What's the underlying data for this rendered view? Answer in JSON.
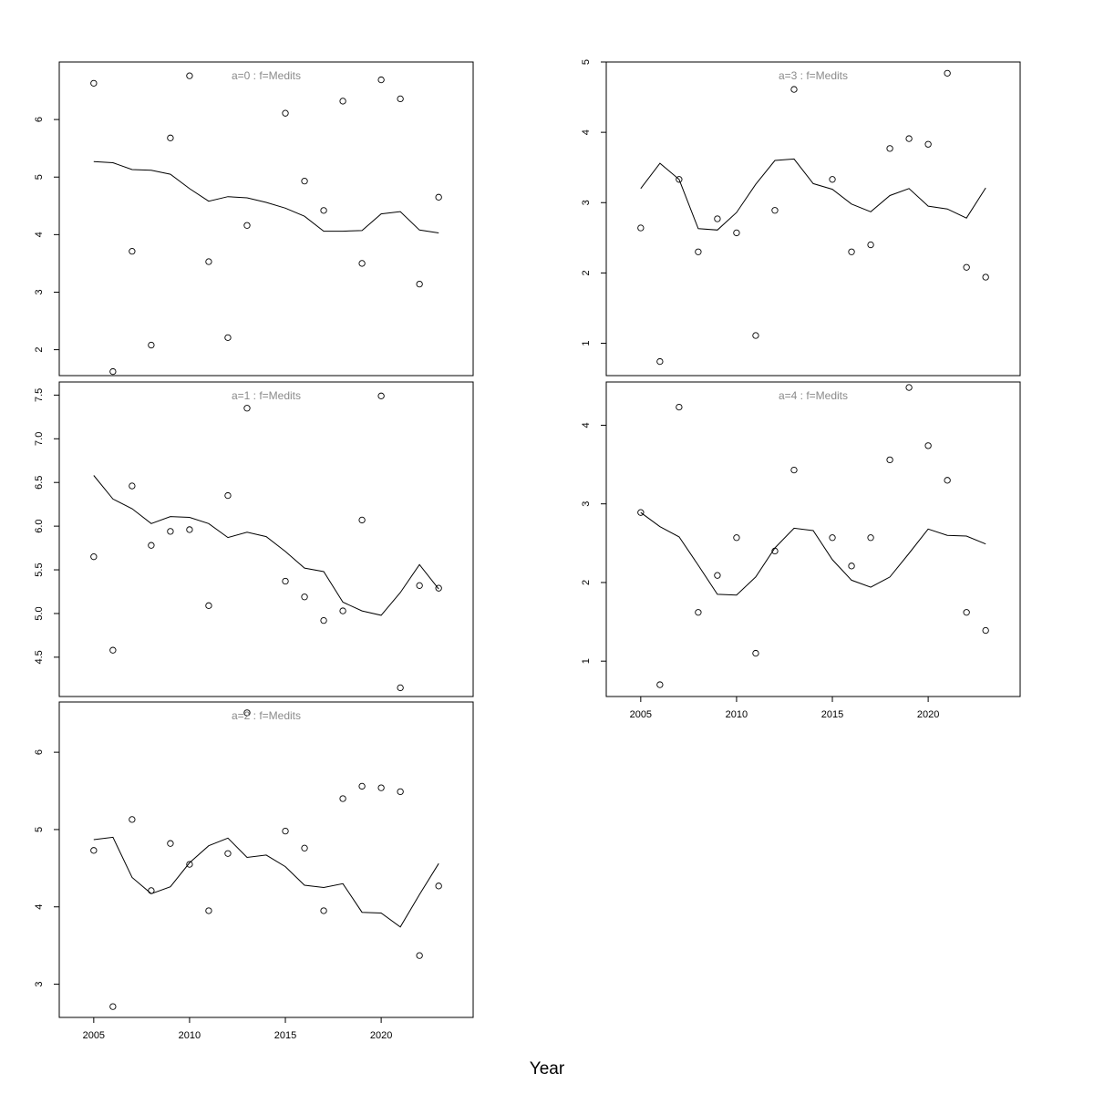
{
  "figure": {
    "xlabel": "Year"
  },
  "chart_data": [
    {
      "type": "line",
      "title": "a=0  :  f=Medits",
      "xlim": [
        2003.2,
        2024.8
      ],
      "ylim": [
        1.55,
        7.0
      ],
      "xticks": [],
      "yticks": [
        2,
        3,
        4,
        5,
        6
      ],
      "series": [
        {
          "kind": "line",
          "x": [
            2005,
            2006,
            2007,
            2008,
            2009,
            2010,
            2011,
            2012,
            2013,
            2014,
            2015,
            2016,
            2017,
            2018,
            2019,
            2020,
            2021,
            2022,
            2023
          ],
          "y": [
            5.27,
            5.25,
            5.13,
            5.12,
            5.05,
            4.8,
            4.58,
            4.66,
            4.64,
            4.56,
            4.46,
            4.32,
            4.06,
            4.06,
            4.07,
            4.36,
            4.4,
            4.08,
            4.03
          ]
        },
        {
          "kind": "points",
          "x": [
            2005,
            2006,
            2007,
            2008,
            2009,
            2010,
            2011,
            2012,
            2013,
            2015,
            2016,
            2017,
            2018,
            2019,
            2020,
            2021,
            2022,
            2023
          ],
          "y": [
            6.63,
            1.62,
            3.71,
            2.08,
            5.68,
            6.76,
            3.53,
            2.21,
            4.16,
            6.11,
            4.93,
            4.42,
            6.32,
            3.5,
            6.69,
            6.36,
            3.14,
            4.65
          ]
        }
      ]
    },
    {
      "type": "line",
      "title": "a=1  :  f=Medits",
      "xlim": [
        2003.2,
        2024.8
      ],
      "ylim": [
        4.05,
        7.65
      ],
      "xticks": [],
      "yticks": [
        4.5,
        5.0,
        5.5,
        6.0,
        6.5,
        7.0,
        7.5
      ],
      "ytick_labels": [
        "4.5",
        "5.0",
        "5.5",
        "6.0",
        "6.5",
        "7.0",
        "7.5"
      ],
      "series": [
        {
          "kind": "line",
          "x": [
            2005,
            2006,
            2007,
            2008,
            2009,
            2010,
            2011,
            2012,
            2013,
            2014,
            2015,
            2016,
            2017,
            2018,
            2019,
            2020,
            2021,
            2022,
            2023
          ],
          "y": [
            6.58,
            6.31,
            6.2,
            6.03,
            6.11,
            6.1,
            6.03,
            5.87,
            5.93,
            5.88,
            5.71,
            5.52,
            5.48,
            5.13,
            5.03,
            4.98,
            5.24,
            5.56,
            5.28
          ]
        },
        {
          "kind": "points",
          "x": [
            2005,
            2006,
            2007,
            2008,
            2009,
            2010,
            2011,
            2012,
            2013,
            2015,
            2016,
            2017,
            2018,
            2019,
            2020,
            2021,
            2022,
            2023
          ],
          "y": [
            5.65,
            4.58,
            6.46,
            5.78,
            5.94,
            5.96,
            5.09,
            6.35,
            7.35,
            5.37,
            5.19,
            4.92,
            5.03,
            6.07,
            7.49,
            4.15,
            5.32,
            5.29
          ]
        }
      ]
    },
    {
      "type": "line",
      "title": "a=2  :  f=Medits",
      "xlim": [
        2003.2,
        2024.8
      ],
      "ylim": [
        2.57,
        6.65
      ],
      "xticks": [
        2005,
        2010,
        2015,
        2020
      ],
      "yticks": [
        3,
        4,
        5,
        6
      ],
      "series": [
        {
          "kind": "line",
          "x": [
            2005,
            2006,
            2007,
            2008,
            2009,
            2010,
            2011,
            2012,
            2013,
            2014,
            2015,
            2016,
            2017,
            2018,
            2019,
            2020,
            2021,
            2022,
            2023
          ],
          "y": [
            4.87,
            4.9,
            4.38,
            4.17,
            4.26,
            4.57,
            4.79,
            4.89,
            4.64,
            4.67,
            4.52,
            4.28,
            4.25,
            4.3,
            3.93,
            3.92,
            3.74,
            4.16,
            4.56
          ]
        },
        {
          "kind": "points",
          "x": [
            2005,
            2006,
            2007,
            2008,
            2009,
            2010,
            2011,
            2012,
            2013,
            2015,
            2016,
            2017,
            2018,
            2019,
            2020,
            2021,
            2022,
            2023
          ],
          "y": [
            4.73,
            2.71,
            5.13,
            4.21,
            4.82,
            4.55,
            3.95,
            4.69,
            6.51,
            4.98,
            4.76,
            3.95,
            5.4,
            5.56,
            5.54,
            5.49,
            3.37,
            4.27
          ]
        }
      ]
    },
    {
      "type": "line",
      "title": "a=3  :  f=Medits",
      "xlim": [
        2003.2,
        2024.8
      ],
      "ylim": [
        0.54,
        5.0
      ],
      "xticks": [],
      "yticks": [
        1,
        2,
        3,
        4,
        5
      ],
      "series": [
        {
          "kind": "line",
          "x": [
            2005,
            2006,
            2007,
            2008,
            2009,
            2010,
            2011,
            2012,
            2013,
            2014,
            2015,
            2016,
            2017,
            2018,
            2019,
            2020,
            2021,
            2022,
            2023
          ],
          "y": [
            3.2,
            3.56,
            3.33,
            2.63,
            2.61,
            2.86,
            3.26,
            3.6,
            3.62,
            3.27,
            3.19,
            2.98,
            2.87,
            3.1,
            3.2,
            2.95,
            2.91,
            2.78,
            3.21
          ]
        },
        {
          "kind": "points",
          "x": [
            2005,
            2006,
            2007,
            2008,
            2009,
            2010,
            2011,
            2012,
            2013,
            2015,
            2016,
            2017,
            2018,
            2019,
            2020,
            2021,
            2022,
            2023
          ],
          "y": [
            2.64,
            0.74,
            3.33,
            2.3,
            2.77,
            2.57,
            1.11,
            2.89,
            4.61,
            3.33,
            2.3,
            2.4,
            3.77,
            3.91,
            3.83,
            4.84,
            2.08,
            1.94
          ]
        }
      ]
    },
    {
      "type": "line",
      "title": "a=4  :  f=Medits",
      "xlim": [
        2003.2,
        2024.8
      ],
      "ylim": [
        0.55,
        4.55
      ],
      "xticks": [
        2005,
        2010,
        2015,
        2020
      ],
      "yticks": [
        1,
        2,
        3,
        4
      ],
      "series": [
        {
          "kind": "line",
          "x": [
            2005,
            2006,
            2007,
            2008,
            2009,
            2010,
            2011,
            2012,
            2013,
            2014,
            2015,
            2016,
            2017,
            2018,
            2019,
            2020,
            2021,
            2022,
            2023
          ],
          "y": [
            2.89,
            2.71,
            2.58,
            2.22,
            1.85,
            1.84,
            2.07,
            2.44,
            2.69,
            2.66,
            2.29,
            2.03,
            1.94,
            2.07,
            2.37,
            2.68,
            2.6,
            2.59,
            2.49
          ]
        },
        {
          "kind": "points",
          "x": [
            2005,
            2006,
            2007,
            2008,
            2009,
            2010,
            2011,
            2012,
            2013,
            2015,
            2016,
            2017,
            2018,
            2019,
            2020,
            2021,
            2022,
            2023
          ],
          "y": [
            2.89,
            0.7,
            4.23,
            1.62,
            2.09,
            2.57,
            1.1,
            2.4,
            3.43,
            2.57,
            2.21,
            2.57,
            3.56,
            4.48,
            3.74,
            3.3,
            1.62,
            1.39
          ]
        }
      ]
    }
  ]
}
